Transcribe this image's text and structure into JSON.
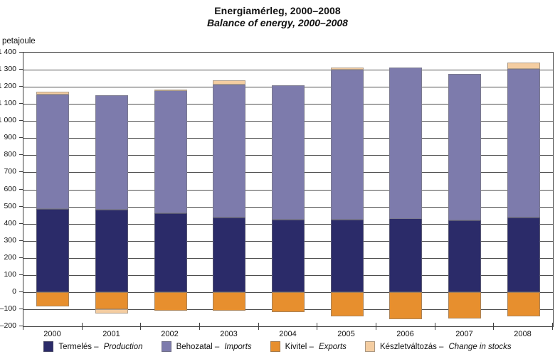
{
  "header": {
    "title": "Energiamérleg, 2000–2008",
    "subtitle": "Balance of energy, 2000–2008"
  },
  "chart_data": {
    "type": "bar",
    "stacked": true,
    "title": "Energiamérleg, 2000–2008",
    "subtitle": "Balance of energy, 2000–2008",
    "ylabel": "petajoule",
    "xlabel": "",
    "grid": true,
    "legend_position": "bottom",
    "ylim": [
      -200,
      1400
    ],
    "ytick_step": 100,
    "y_tick_labels": [
      "1 400",
      "1 300",
      "1 200",
      "1 100",
      "1 000",
      "900",
      "800",
      "700",
      "600",
      "500",
      "400",
      "300",
      "200",
      "100",
      "0",
      "–100",
      "–200"
    ],
    "categories": [
      "2000",
      "2001",
      "2002",
      "2003",
      "2004",
      "2005",
      "2006",
      "2007",
      "2008"
    ],
    "series": [
      {
        "key": "production",
        "name_hu": "Termelés",
        "name_en": "Production",
        "color": "#2b2b69",
        "values": [
          485,
          480,
          460,
          435,
          425,
          425,
          430,
          420,
          435
        ]
      },
      {
        "key": "imports",
        "name_hu": "Behozatal",
        "name_en": "Imports",
        "color": "#7d7bac",
        "values": [
          670,
          670,
          720,
          780,
          785,
          875,
          885,
          855,
          870
        ]
      },
      {
        "key": "exports",
        "name_hu": "Kivitel",
        "name_en": "Exports",
        "color": "#e78f2e",
        "values": [
          -85,
          -100,
          -110,
          -110,
          -115,
          -140,
          -160,
          -155,
          -140
        ]
      },
      {
        "key": "stocks",
        "name_hu": "Készletváltozás",
        "name_en": "Change in stocks",
        "color": "#f4cda1",
        "values": [
          15,
          -25,
          5,
          25,
          0,
          15,
          0,
          0,
          35
        ]
      }
    ],
    "legend_separator": "–"
  }
}
